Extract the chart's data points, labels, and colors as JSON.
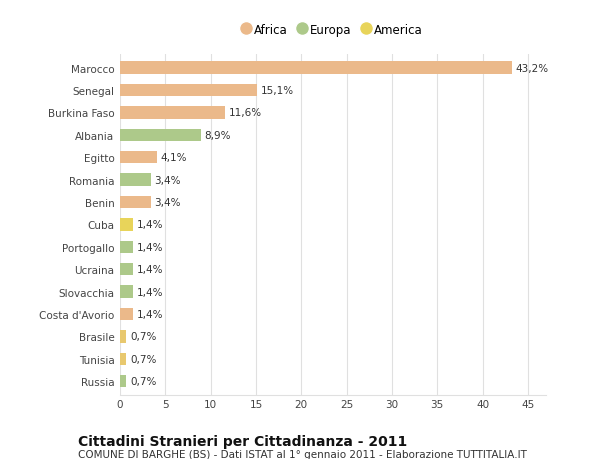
{
  "categories": [
    "Russia",
    "Tunisia",
    "Brasile",
    "Costa d'Avorio",
    "Slovacchia",
    "Ucraina",
    "Portogallo",
    "Cuba",
    "Benin",
    "Romania",
    "Egitto",
    "Albania",
    "Burkina Faso",
    "Senegal",
    "Marocco"
  ],
  "values": [
    0.7,
    0.7,
    0.7,
    1.4,
    1.4,
    1.4,
    1.4,
    1.4,
    3.4,
    3.4,
    4.1,
    8.9,
    11.6,
    15.1,
    43.2
  ],
  "labels": [
    "0,7%",
    "0,7%",
    "0,7%",
    "1,4%",
    "1,4%",
    "1,4%",
    "1,4%",
    "1,4%",
    "3,4%",
    "3,4%",
    "4,1%",
    "8,9%",
    "11,6%",
    "15,1%",
    "43,2%"
  ],
  "colors": [
    "#adc98a",
    "#e8c86e",
    "#e8c86e",
    "#ebb98a",
    "#adc98a",
    "#adc98a",
    "#adc98a",
    "#e8d45a",
    "#ebb98a",
    "#adc98a",
    "#ebb98a",
    "#adc98a",
    "#ebb98a",
    "#ebb98a",
    "#ebb98a"
  ],
  "legend_items": [
    {
      "label": "Africa",
      "color": "#ebb98a"
    },
    {
      "label": "Europa",
      "color": "#adc98a"
    },
    {
      "label": "America",
      "color": "#e8d45a"
    }
  ],
  "title": "Cittadini Stranieri per Cittadinanza - 2011",
  "subtitle": "COMUNE DI BARGHE (BS) - Dati ISTAT al 1° gennaio 2011 - Elaborazione TUTTITALIA.IT",
  "xlim": [
    0,
    47
  ],
  "xticks": [
    0,
    5,
    10,
    15,
    20,
    25,
    30,
    35,
    40,
    45
  ],
  "background_color": "#ffffff",
  "grid_color": "#e0e0e0",
  "bar_height": 0.55,
  "title_fontsize": 10,
  "subtitle_fontsize": 7.5,
  "label_fontsize": 7.5,
  "tick_fontsize": 7.5,
  "legend_fontsize": 8.5
}
